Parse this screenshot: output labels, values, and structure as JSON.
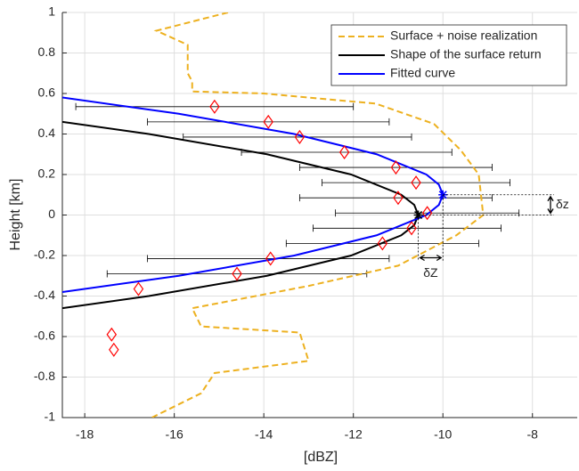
{
  "chart_data": {
    "type": "line",
    "xlabel": "[dBZ]",
    "ylabel": "Height [km]",
    "xlim": [
      -18.5,
      -7
    ],
    "ylim": [
      -1,
      1
    ],
    "xticks": [
      -18,
      -16,
      -14,
      -12,
      -10,
      -8
    ],
    "yticks": [
      -1,
      -0.8,
      -0.6,
      -0.4,
      -0.2,
      0,
      0.2,
      0.4,
      0.6,
      0.8,
      1
    ],
    "grid": true,
    "legend": "northeast",
    "series": [
      {
        "name": "Surface + noise realization",
        "color": "#edb120",
        "style": "dashed",
        "x": [
          -14.8,
          -16.4,
          -15.7,
          -15.7,
          -15.6,
          -15.6,
          -14.0,
          -11.5,
          -10.2,
          -9.6,
          -9.2,
          -9.1,
          -9.7,
          -11.0,
          -13.0,
          -15.6,
          -15.4,
          -13.2,
          -13.0,
          -15.1,
          -15.4,
          -16.5
        ],
        "values": [
          1,
          0.91,
          0.84,
          0.7,
          0.66,
          0.61,
          0.6,
          0.55,
          0.45,
          0.32,
          0.2,
          0.0,
          -0.1,
          -0.25,
          -0.35,
          -0.46,
          -0.55,
          -0.58,
          -0.72,
          -0.78,
          -0.88,
          -1
        ]
      },
      {
        "name": "Shape of the surface return",
        "color": "#000000",
        "style": "solid",
        "x": [
          -18.5,
          -16.57,
          -13.93,
          -12.05,
          -10.93,
          -10.64,
          -10.55,
          -10.64,
          -10.93,
          -12.05,
          -13.93,
          -16.57,
          -18.5
        ],
        "values": [
          0.46,
          0.4,
          0.3,
          0.2,
          0.1,
          0.05,
          0,
          -0.05,
          -0.1,
          -0.2,
          -0.3,
          -0.4,
          -0.46
        ]
      },
      {
        "name": "Fitted curve",
        "color": "#0000ff",
        "style": "solid",
        "x": [
          -18.5,
          -15.9,
          -13.32,
          -11.48,
          -10.37,
          -10.09,
          -10,
          -10.09,
          -10.37,
          -11.48,
          -13.32,
          -15.9,
          -18.5
        ],
        "values": [
          0.58,
          0.5,
          0.4,
          0.3,
          0.2,
          0.15,
          0.1,
          0.05,
          0,
          -0.1,
          -0.2,
          -0.3,
          -0.38
        ]
      }
    ],
    "points": {
      "color": "#ff0000",
      "x": [
        -15.1,
        -13.9,
        -13.2,
        -12.2,
        -11.05,
        -10.6,
        -11.0,
        -10.35,
        -10.7,
        -11.35,
        -13.85,
        -14.6,
        -16.8,
        -17.4,
        -17.35
      ],
      "values": [
        0.535,
        0.46,
        0.385,
        0.31,
        0.235,
        0.16,
        0.085,
        0.01,
        -0.065,
        -0.14,
        -0.215,
        -0.29,
        -0.365,
        -0.59,
        -0.665
      ]
    },
    "errorbars": {
      "color": "#000000",
      "values": [
        0.535,
        0.46,
        0.385,
        0.31,
        0.235,
        0.16,
        0.085,
        0.01,
        -0.065,
        -0.14,
        -0.215,
        -0.29
      ],
      "low": [
        -18.2,
        -16.6,
        -15.8,
        -14.5,
        -13.2,
        -12.7,
        -13.2,
        -12.4,
        -12.9,
        -13.5,
        -16.6,
        -17.5
      ],
      "high": [
        -12,
        -11.2,
        -10.7,
        -9.8,
        -8.9,
        -8.5,
        -8.9,
        -8.3,
        -8.7,
        -9.2,
        -11.2,
        -11.7
      ]
    },
    "annotations": [
      "δz",
      "δZ"
    ]
  }
}
